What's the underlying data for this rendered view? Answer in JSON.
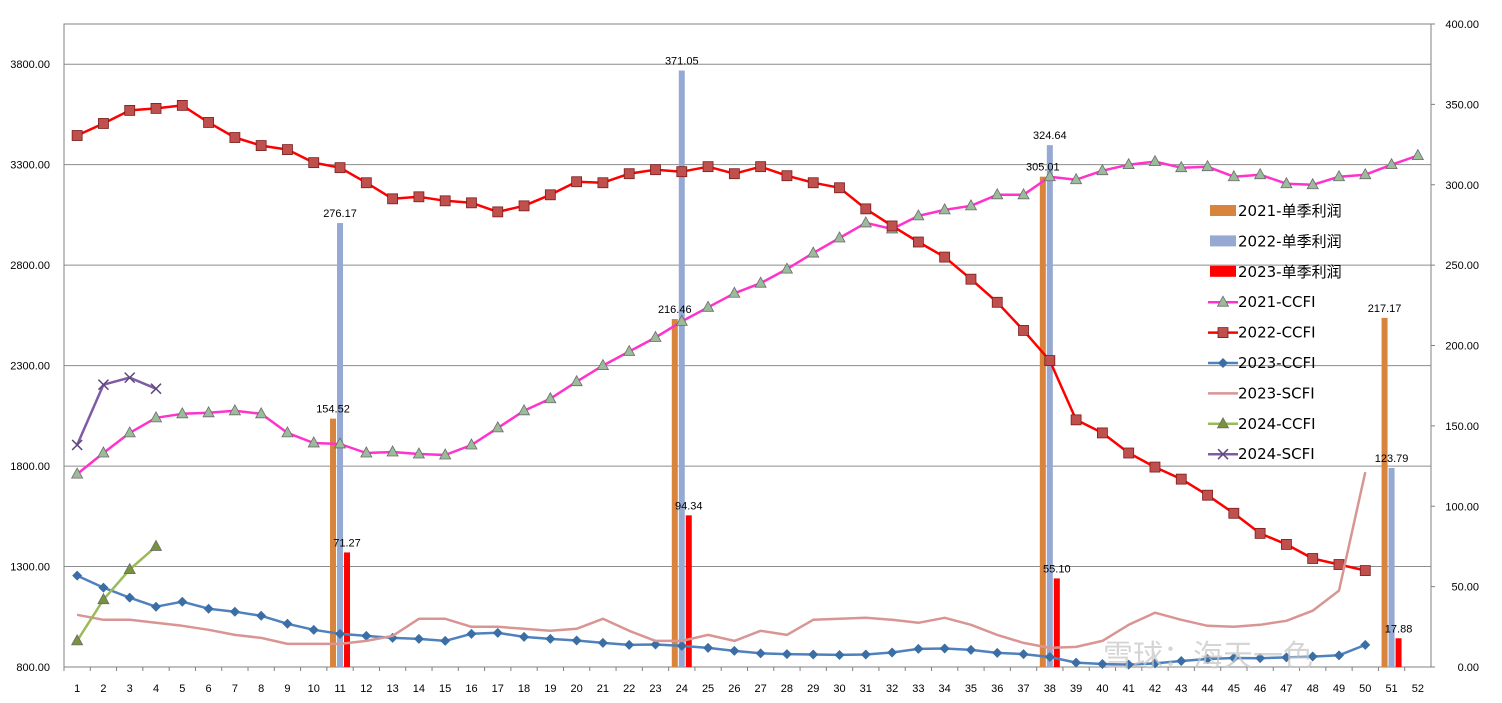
{
  "chart_data": {
    "type": "line",
    "title": "",
    "x": [
      1,
      2,
      3,
      4,
      5,
      6,
      7,
      8,
      9,
      10,
      11,
      12,
      13,
      14,
      15,
      16,
      17,
      18,
      19,
      20,
      21,
      22,
      23,
      24,
      25,
      26,
      27,
      28,
      29,
      30,
      31,
      32,
      33,
      34,
      35,
      36,
      37,
      38,
      39,
      40,
      41,
      42,
      43,
      44,
      45,
      46,
      47,
      48,
      49,
      50,
      51,
      52
    ],
    "y_left_ticks": [
      "800.00",
      "1300.00",
      "1800.00",
      "2300.00",
      "2800.00",
      "3300.00",
      "3800.00"
    ],
    "y_left_range": [
      800,
      4000
    ],
    "y_right_ticks": [
      "0.00",
      "50.00",
      "100.00",
      "150.00",
      "200.00",
      "250.00",
      "300.00",
      "350.00",
      "400.00"
    ],
    "y_right_range": [
      0,
      400
    ],
    "grid": true,
    "legend_placement": "right",
    "series": [
      {
        "name": "2021-CCFI",
        "axis": "left",
        "kind": "line",
        "marker": "triangle",
        "color": "#ff33cc",
        "markerColor": "#9bbb9b",
        "values": [
          1760,
          1865,
          1965,
          2040,
          2060,
          2065,
          2075,
          2060,
          1965,
          1915,
          1910,
          1865,
          1870,
          1860,
          1855,
          1905,
          1990,
          2075,
          2135,
          2220,
          2300,
          2370,
          2440,
          2520,
          2590,
          2660,
          2710,
          2780,
          2860,
          2935,
          3010,
          2980,
          3045,
          3075,
          3095,
          3150,
          3150,
          3240,
          3225,
          3270,
          3300,
          3315,
          3285,
          3290,
          3240,
          3250,
          3205,
          3200,
          3240,
          3250,
          3300,
          3345
        ]
      },
      {
        "name": "2022-CCFI",
        "axis": "left",
        "kind": "line",
        "marker": "square",
        "color": "#ff0000",
        "markerColor": "#c0504d",
        "values": [
          3445,
          3505,
          3570,
          3580,
          3595,
          3510,
          3435,
          3395,
          3375,
          3310,
          3285,
          3210,
          3130,
          3140,
          3120,
          3110,
          3065,
          3095,
          3150,
          3215,
          3210,
          3255,
          3275,
          3265,
          3290,
          3255,
          3290,
          3245,
          3210,
          3185,
          3080,
          2995,
          2915,
          2840,
          2730,
          2615,
          2475,
          2325,
          2030,
          1965,
          1865,
          1795,
          1735,
          1655,
          1565,
          1465,
          1410,
          1340,
          1310,
          1280,
          null,
          null
        ]
      },
      {
        "name": "2023-CCFI",
        "axis": "left",
        "kind": "line",
        "marker": "diamond",
        "color": "#4f81bd",
        "markerColor": "#3a6ea5",
        "values": [
          1255,
          1195,
          1145,
          1100,
          1125,
          1090,
          1075,
          1055,
          1015,
          985,
          965,
          955,
          945,
          940,
          930,
          965,
          970,
          950,
          940,
          932,
          920,
          910,
          912,
          905,
          895,
          880,
          868,
          864,
          862,
          860,
          862,
          872,
          890,
          892,
          885,
          870,
          864,
          850,
          822,
          815,
          812,
          818,
          830,
          840,
          845,
          844,
          848,
          852,
          858,
          910,
          null,
          null
        ]
      },
      {
        "name": "2023-SCFI",
        "axis": "left",
        "kind": "line",
        "marker": "none",
        "color": "#d99594",
        "markerColor": "#d99594",
        "values": [
          1060,
          1035,
          1035,
          1020,
          1005,
          985,
          960,
          945,
          915,
          915,
          915,
          930,
          955,
          1040,
          1040,
          1000,
          1000,
          990,
          980,
          990,
          1040,
          980,
          930,
          930,
          960,
          930,
          980,
          960,
          1035,
          1040,
          1045,
          1035,
          1020,
          1045,
          1010,
          960,
          920,
          895,
          900,
          930,
          1010,
          1070,
          1035,
          1005,
          1000,
          1010,
          1030,
          1080,
          1180,
          1770,
          null,
          null
        ]
      },
      {
        "name": "2024-CCFI",
        "axis": "left",
        "kind": "line",
        "marker": "triangle",
        "color": "#9bbb59",
        "markerColor": "#77933c",
        "values": [
          930,
          1135,
          1285,
          1400,
          null,
          null,
          null,
          null,
          null,
          null,
          null,
          null,
          null,
          null,
          null,
          null,
          null,
          null,
          null,
          null,
          null,
          null,
          null,
          null,
          null,
          null,
          null,
          null,
          null,
          null,
          null,
          null,
          null,
          null,
          null,
          null,
          null,
          null,
          null,
          null,
          null,
          null,
          null,
          null,
          null,
          null,
          null,
          null,
          null,
          null,
          null,
          null
        ]
      },
      {
        "name": "2024-SCFI",
        "axis": "left",
        "kind": "line",
        "marker": "x",
        "color": "#7f5ba6",
        "markerColor": "#604a7b",
        "values": [
          1905,
          2205,
          2240,
          2185,
          null,
          null,
          null,
          null,
          null,
          null,
          null,
          null,
          null,
          null,
          null,
          null,
          null,
          null,
          null,
          null,
          null,
          null,
          null,
          null,
          null,
          null,
          null,
          null,
          null,
          null,
          null,
          null,
          null,
          null,
          null,
          null,
          null,
          null,
          null,
          null,
          null,
          null,
          null,
          null,
          null,
          null,
          null,
          null,
          null,
          null,
          null,
          null
        ]
      }
    ],
    "bars": [
      {
        "name": "2021-单季利润",
        "axis": "right",
        "color": "#d8843d",
        "offset": -1,
        "points": [
          {
            "x": 11,
            "value": 154.52
          },
          {
            "x": 24,
            "value": 216.46
          },
          {
            "x": 38,
            "value": 305.01
          },
          {
            "x": 51,
            "value": 217.17
          }
        ]
      },
      {
        "name": "2022-单季利润",
        "axis": "right",
        "color": "#95a9d2",
        "offset": 0,
        "points": [
          {
            "x": 11,
            "value": 276.17
          },
          {
            "x": 24,
            "value": 371.05
          },
          {
            "x": 38,
            "value": 324.64
          },
          {
            "x": 51,
            "value": 123.79
          }
        ]
      },
      {
        "name": "2023-单季利润",
        "axis": "right",
        "color": "#ff0000",
        "offset": 1,
        "points": [
          {
            "x": 11,
            "value": 71.27
          },
          {
            "x": 24,
            "value": 94.34
          },
          {
            "x": 38,
            "value": 55.1
          },
          {
            "x": 51,
            "value": 17.88
          }
        ]
      }
    ],
    "bar_labels": [
      "154.52",
      "276.17",
      "71.27",
      "216.46",
      "371.05",
      "94.34",
      "305.01",
      "324.64",
      "55.10",
      "217.17",
      "123.79",
      "17.88"
    ],
    "legend": [
      "2021-单季利润",
      "2022-单季利润",
      "2023-单季利润",
      "2021-CCFI",
      "2022-CCFI",
      "2023-CCFI",
      "2023-SCFI",
      "2024-CCFI",
      "2024-SCFI"
    ]
  },
  "watermark": "雪球：海天一色"
}
